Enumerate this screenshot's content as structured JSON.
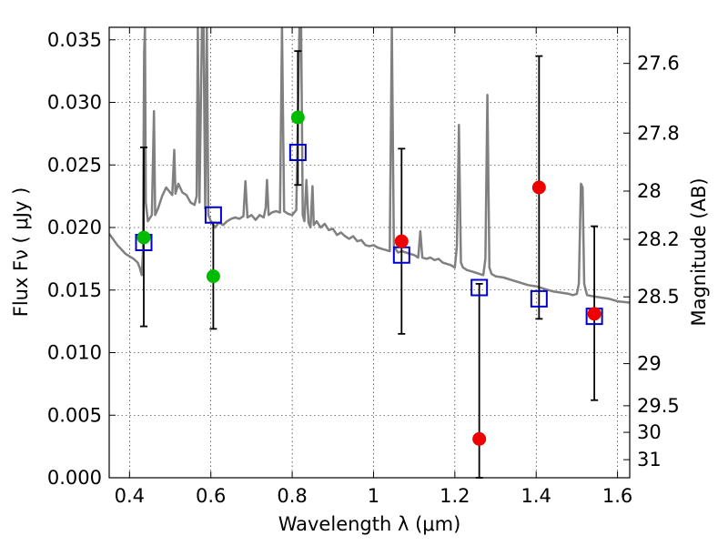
{
  "chart_data": {
    "type": "scatter",
    "xlabel": "Wavelength  λ (μm)",
    "ylabel": "Flux  Fν  ( μJy )",
    "y2label": "Magnitude (AB)",
    "xlim": [
      0.35,
      1.63
    ],
    "ylim": [
      0.0,
      0.036
    ],
    "grid": true,
    "x_ticks": [
      {
        "value": 0.4,
        "label": "0.4"
      },
      {
        "value": 0.6,
        "label": "0.6"
      },
      {
        "value": 0.8,
        "label": "0.8"
      },
      {
        "value": 1.0,
        "label": "1"
      },
      {
        "value": 1.2,
        "label": "1.2"
      },
      {
        "value": 1.4,
        "label": "1.4"
      },
      {
        "value": 1.6,
        "label": "1.6"
      }
    ],
    "y_ticks": [
      {
        "value": 0.0,
        "label": "0.000"
      },
      {
        "value": 0.005,
        "label": "0.005"
      },
      {
        "value": 0.01,
        "label": "0.010"
      },
      {
        "value": 0.015,
        "label": "0.015"
      },
      {
        "value": 0.02,
        "label": "0.020"
      },
      {
        "value": 0.025,
        "label": "0.025"
      },
      {
        "value": 0.03,
        "label": "0.030"
      },
      {
        "value": 0.035,
        "label": "0.035"
      }
    ],
    "y2_ticks": [
      {
        "mag": 27.6,
        "label": "27.6"
      },
      {
        "mag": 27.8,
        "label": "27.8"
      },
      {
        "mag": 28.0,
        "label": "28"
      },
      {
        "mag": 28.2,
        "label": "28.2"
      },
      {
        "mag": 28.5,
        "label": "28.5"
      },
      {
        "mag": 29.0,
        "label": "29"
      },
      {
        "mag": 29.5,
        "label": "29.5"
      },
      {
        "mag": 30.0,
        "label": "30"
      },
      {
        "mag": 31.0,
        "label": "31"
      }
    ],
    "colors": {
      "spectrum": "#808080",
      "green_points": "#00bb00",
      "red_points": "#ee0000",
      "model_squares": "#0000cc",
      "errorbars": "#000000"
    },
    "observed_green": [
      {
        "x": 0.435,
        "y": 0.0192,
        "err_low": 0.0121,
        "err_high": 0.0264
      },
      {
        "x": 0.606,
        "y": 0.0161,
        "err_low": 0.0119,
        "err_high": 0.0204
      },
      {
        "x": 0.814,
        "y": 0.0288,
        "err_low": 0.0234,
        "err_high": 0.0341
      }
    ],
    "observed_red": [
      {
        "x": 1.069,
        "y": 0.0189,
        "err_low": 0.0115,
        "err_high": 0.0263
      },
      {
        "x": 1.26,
        "y": 0.0031,
        "err_low": 0.0,
        "err_high": 0.0155
      },
      {
        "x": 1.407,
        "y": 0.0232,
        "err_low": 0.0127,
        "err_high": 0.0337
      },
      {
        "x": 1.543,
        "y": 0.0131,
        "err_low": 0.0062,
        "err_high": 0.0201
      }
    ],
    "model_squares": [
      {
        "x": 0.435,
        "y": 0.0188
      },
      {
        "x": 0.606,
        "y": 0.021
      },
      {
        "x": 0.814,
        "y": 0.026
      },
      {
        "x": 1.069,
        "y": 0.0178
      },
      {
        "x": 1.26,
        "y": 0.0152
      },
      {
        "x": 1.407,
        "y": 0.0143
      },
      {
        "x": 1.543,
        "y": 0.0129
      }
    ],
    "spectrum": [
      [
        0.35,
        0.0195
      ],
      [
        0.37,
        0.0186
      ],
      [
        0.39,
        0.0179
      ],
      [
        0.41,
        0.0175
      ],
      [
        0.42,
        0.0172
      ],
      [
        0.425,
        0.0168
      ],
      [
        0.43,
        0.0162
      ],
      [
        0.433,
        0.018
      ],
      [
        0.436,
        0.034
      ],
      [
        0.438,
        0.036
      ],
      [
        0.44,
        0.022
      ],
      [
        0.445,
        0.0205
      ],
      [
        0.455,
        0.021
      ],
      [
        0.46,
        0.0293
      ],
      [
        0.463,
        0.021
      ],
      [
        0.47,
        0.0215
      ],
      [
        0.48,
        0.0225
      ],
      [
        0.49,
        0.0232
      ],
      [
        0.5,
        0.0228
      ],
      [
        0.505,
        0.0226
      ],
      [
        0.51,
        0.0262
      ],
      [
        0.513,
        0.0227
      ],
      [
        0.52,
        0.0235
      ],
      [
        0.53,
        0.0228
      ],
      [
        0.54,
        0.0226
      ],
      [
        0.55,
        0.022
      ],
      [
        0.56,
        0.0218
      ],
      [
        0.565,
        0.0225
      ],
      [
        0.568,
        0.036
      ],
      [
        0.572,
        0.022
      ],
      [
        0.578,
        0.036
      ],
      [
        0.582,
        0.036
      ],
      [
        0.586,
        0.0215
      ],
      [
        0.59,
        0.036
      ],
      [
        0.594,
        0.021
      ],
      [
        0.6,
        0.0205
      ],
      [
        0.61,
        0.02
      ],
      [
        0.62,
        0.0204
      ],
      [
        0.63,
        0.0202
      ],
      [
        0.64,
        0.0205
      ],
      [
        0.65,
        0.0207
      ],
      [
        0.66,
        0.0208
      ],
      [
        0.67,
        0.0207
      ],
      [
        0.68,
        0.0209
      ],
      [
        0.685,
        0.0237
      ],
      [
        0.69,
        0.0208
      ],
      [
        0.7,
        0.021
      ],
      [
        0.71,
        0.0206
      ],
      [
        0.72,
        0.021
      ],
      [
        0.73,
        0.0208
      ],
      [
        0.735,
        0.0216
      ],
      [
        0.738,
        0.0238
      ],
      [
        0.742,
        0.021
      ],
      [
        0.75,
        0.0212
      ],
      [
        0.76,
        0.0213
      ],
      [
        0.77,
        0.0212
      ],
      [
        0.775,
        0.036
      ],
      [
        0.78,
        0.0213
      ],
      [
        0.79,
        0.0211
      ],
      [
        0.8,
        0.021
      ],
      [
        0.81,
        0.0214
      ],
      [
        0.818,
        0.036
      ],
      [
        0.822,
        0.036
      ],
      [
        0.826,
        0.021
      ],
      [
        0.83,
        0.0205
      ],
      [
        0.835,
        0.0238
      ],
      [
        0.84,
        0.0204
      ],
      [
        0.845,
        0.02
      ],
      [
        0.85,
        0.0233
      ],
      [
        0.853,
        0.0202
      ],
      [
        0.86,
        0.0205
      ],
      [
        0.87,
        0.02
      ],
      [
        0.88,
        0.0203
      ],
      [
        0.89,
        0.0198
      ],
      [
        0.9,
        0.0199
      ],
      [
        0.91,
        0.0194
      ],
      [
        0.92,
        0.0196
      ],
      [
        0.93,
        0.0193
      ],
      [
        0.94,
        0.0191
      ],
      [
        0.95,
        0.0193
      ],
      [
        0.96,
        0.0189
      ],
      [
        0.97,
        0.019
      ],
      [
        0.98,
        0.0186
      ],
      [
        0.99,
        0.0185
      ],
      [
        1.0,
        0.0186
      ],
      [
        1.01,
        0.0184
      ],
      [
        1.02,
        0.0183
      ],
      [
        1.03,
        0.0182
      ],
      [
        1.04,
        0.0181
      ],
      [
        1.045,
        0.036
      ],
      [
        1.05,
        0.0185
      ],
      [
        1.06,
        0.018
      ],
      [
        1.07,
        0.0181
      ],
      [
        1.08,
        0.018
      ],
      [
        1.09,
        0.0179
      ],
      [
        1.1,
        0.0178
      ],
      [
        1.11,
        0.0176
      ],
      [
        1.115,
        0.0197
      ],
      [
        1.12,
        0.0176
      ],
      [
        1.13,
        0.0175
      ],
      [
        1.14,
        0.0176
      ],
      [
        1.15,
        0.0174
      ],
      [
        1.16,
        0.0175
      ],
      [
        1.17,
        0.0172
      ],
      [
        1.18,
        0.0171
      ],
      [
        1.19,
        0.017
      ],
      [
        1.2,
        0.0168
      ],
      [
        1.205,
        0.0185
      ],
      [
        1.21,
        0.0282
      ],
      [
        1.215,
        0.0172
      ],
      [
        1.22,
        0.0168
      ],
      [
        1.23,
        0.0166
      ],
      [
        1.24,
        0.0165
      ],
      [
        1.25,
        0.0164
      ],
      [
        1.26,
        0.0163
      ],
      [
        1.27,
        0.0162
      ],
      [
        1.275,
        0.0175
      ],
      [
        1.28,
        0.0306
      ],
      [
        1.285,
        0.0168
      ],
      [
        1.29,
        0.0163
      ],
      [
        1.3,
        0.0161
      ],
      [
        1.32,
        0.016
      ],
      [
        1.34,
        0.0158
      ],
      [
        1.36,
        0.0156
      ],
      [
        1.38,
        0.0154
      ],
      [
        1.4,
        0.0153
      ],
      [
        1.42,
        0.0151
      ],
      [
        1.44,
        0.0149
      ],
      [
        1.46,
        0.0148
      ],
      [
        1.48,
        0.0147
      ],
      [
        1.49,
        0.0146
      ],
      [
        1.5,
        0.0147
      ],
      [
        1.505,
        0.0155
      ],
      [
        1.51,
        0.0235
      ],
      [
        1.514,
        0.0232
      ],
      [
        1.518,
        0.0155
      ],
      [
        1.525,
        0.0146
      ],
      [
        1.54,
        0.0145
      ],
      [
        1.56,
        0.0144
      ],
      [
        1.58,
        0.0143
      ],
      [
        1.6,
        0.0141
      ],
      [
        1.63,
        0.014
      ]
    ]
  }
}
